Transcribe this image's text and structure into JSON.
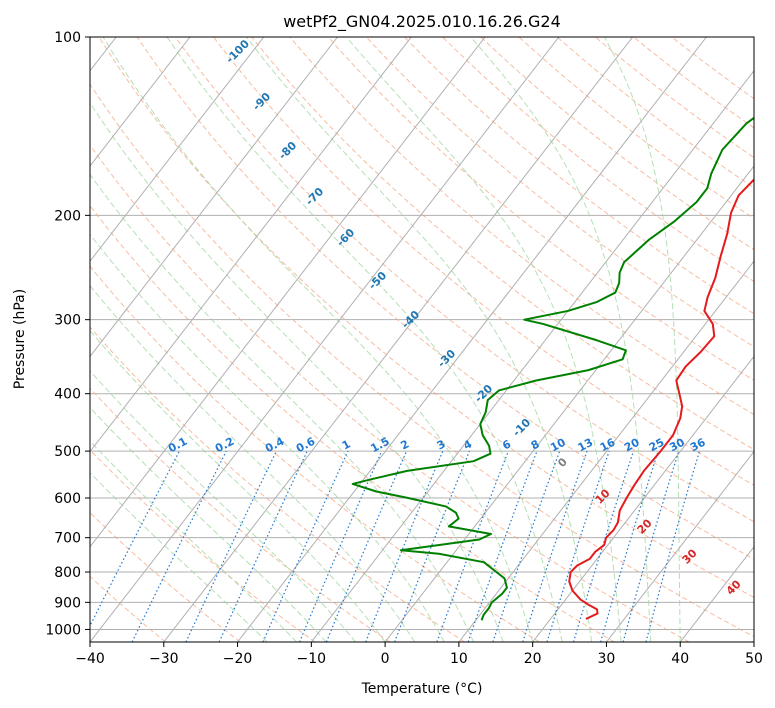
{
  "chart_data": {
    "type": "line",
    "title": "wetPf2_GN04.2025.010.16.26.G24",
    "xlabel": "Temperature (°C)",
    "ylabel": "Pressure (hPa)",
    "xlim": [
      -40,
      50
    ],
    "ylim": [
      1050,
      100
    ],
    "y_scale": "log",
    "grid": true,
    "x_ticks": [
      "−40",
      "−30",
      "−20",
      "−10",
      "0",
      "10",
      "20",
      "30",
      "40",
      "50"
    ],
    "y_ticks": [
      "100",
      "200",
      "300",
      "400",
      "500",
      "600",
      "700",
      "800",
      "900",
      "1000"
    ],
    "colors": {
      "temperature": "#e41a1c",
      "dewpoint": "#008000",
      "isotherm": "#b0b0b0",
      "dry_adiabat": "#f4a582",
      "moist_adiabat": "#9ed49e",
      "mixing_ratio": "#1f78d1",
      "isotherm_label_cold": "#1f77b4",
      "isotherm_label_warm": "#d62728",
      "isotherm_label_zero": "#7f7f7f"
    },
    "isotherm_labels": [
      "-100",
      "-90",
      "-80",
      "-70",
      "-60",
      "-50",
      "-40",
      "-30",
      "-20",
      "-10",
      "0",
      "10",
      "20",
      "30",
      "40"
    ],
    "mixing_ratio_labels": [
      "0.1",
      "0.2",
      "0.4",
      "0.6",
      "1",
      "1.5",
      "2",
      "3",
      "4",
      "6",
      "8",
      "10",
      "13",
      "16",
      "20",
      "25",
      "30",
      "36"
    ],
    "series": [
      {
        "key": "temperature",
        "points": [
          [
            24.8,
            960
          ],
          [
            25.8,
            940
          ],
          [
            25.3,
            925
          ],
          [
            23.8,
            910
          ],
          [
            22.0,
            890
          ],
          [
            20.0,
            860
          ],
          [
            18.6,
            830
          ],
          [
            17.8,
            800
          ],
          [
            18.0,
            780
          ],
          [
            19.0,
            760
          ],
          [
            19.0,
            740
          ],
          [
            19.5,
            720
          ],
          [
            19.0,
            700
          ],
          [
            19.2,
            680
          ],
          [
            19.0,
            660
          ],
          [
            18.0,
            630
          ],
          [
            17.6,
            600
          ],
          [
            17.3,
            570
          ],
          [
            17.1,
            540
          ],
          [
            17.3,
            500
          ],
          [
            17.3,
            470
          ],
          [
            16.5,
            440
          ],
          [
            15.5,
            420
          ],
          [
            13.8,
            400
          ],
          [
            12.0,
            380
          ],
          [
            11.8,
            360
          ],
          [
            12.3,
            340
          ],
          [
            12.5,
            320
          ],
          [
            11.0,
            305
          ],
          [
            8.5,
            290
          ],
          [
            7.5,
            275
          ],
          [
            6.5,
            255
          ],
          [
            5.0,
            235
          ],
          [
            3.5,
            215
          ],
          [
            1.8,
            198
          ],
          [
            1.0,
            185
          ],
          [
            1.5,
            172
          ],
          [
            3.5,
            162
          ],
          [
            5.5,
            155
          ],
          [
            7.5,
            145
          ],
          [
            8.0,
            130
          ],
          [
            7.5,
            115
          ],
          [
            7.6,
            105
          ],
          [
            8.0,
            100
          ]
        ]
      },
      {
        "key": "dewpoint",
        "points": [
          [
            10.8,
            965
          ],
          [
            10.5,
            945
          ],
          [
            10.5,
            920
          ],
          [
            10.3,
            900
          ],
          [
            10.8,
            870
          ],
          [
            10.8,
            850
          ],
          [
            9.5,
            820
          ],
          [
            5.0,
            770
          ],
          [
            -2.0,
            745
          ],
          [
            -7.5,
            735
          ],
          [
            2.0,
            705
          ],
          [
            3.0,
            690
          ],
          [
            -3.5,
            670
          ],
          [
            -3.0,
            650
          ],
          [
            -4.0,
            635
          ],
          [
            -6.0,
            620
          ],
          [
            -12.0,
            600
          ],
          [
            -17.0,
            585
          ],
          [
            -21.0,
            568
          ],
          [
            -19.0,
            558
          ],
          [
            -15.0,
            540
          ],
          [
            -7.0,
            520
          ],
          [
            -5.5,
            505
          ],
          [
            -6.5,
            490
          ],
          [
            -8.5,
            470
          ],
          [
            -10.0,
            450
          ],
          [
            -10.5,
            430
          ],
          [
            -11.5,
            410
          ],
          [
            -11.0,
            395
          ],
          [
            -7.0,
            380
          ],
          [
            -1.0,
            365
          ],
          [
            2.5,
            350
          ],
          [
            2.0,
            338
          ],
          [
            -3.0,
            325
          ],
          [
            -12.0,
            305
          ],
          [
            -15.0,
            300
          ],
          [
            -10.0,
            290
          ],
          [
            -7.0,
            280
          ],
          [
            -5.5,
            270
          ],
          [
            -6.0,
            260
          ],
          [
            -7.0,
            250
          ],
          [
            -7.5,
            240
          ],
          [
            -6.5,
            220
          ],
          [
            -5.0,
            205
          ],
          [
            -4.0,
            190
          ],
          [
            -4.0,
            180
          ],
          [
            -5.0,
            170
          ],
          [
            -6.0,
            155
          ],
          [
            -5.5,
            140
          ],
          [
            -4.0,
            130
          ],
          [
            -1.0,
            118
          ],
          [
            1.5,
            110
          ],
          [
            3.5,
            100
          ]
        ]
      }
    ]
  }
}
